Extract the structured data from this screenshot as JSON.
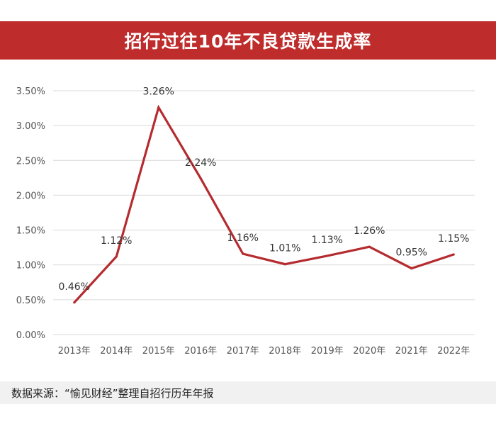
{
  "title": "招行过往10年不良贷款生成率",
  "source": "数据来源：“愉见财经”整理自招行历年年报",
  "colors": {
    "banner": "#bf2c2c",
    "line": "#b52b2f",
    "grid": "#d9d9d9"
  },
  "chart_data": {
    "type": "line",
    "title": "招行过往10年不良贷款生成率",
    "categories": [
      "2013年",
      "2014年",
      "2015年",
      "2016年",
      "2017年",
      "2018年",
      "2019年",
      "2020年",
      "2021年",
      "2022年"
    ],
    "series": [
      {
        "name": "不良贷款生成率",
        "values": [
          0.46,
          1.12,
          3.26,
          2.24,
          1.16,
          1.01,
          1.13,
          1.26,
          0.95,
          1.15
        ]
      }
    ],
    "data_labels": [
      "0.46%",
      "1.12%",
      "3.26%",
      "2.24%",
      "1.16%",
      "1.01%",
      "1.13%",
      "1.26%",
      "0.95%",
      "1.15%"
    ],
    "yticks": [
      "0.00%",
      "0.50%",
      "1.00%",
      "1.50%",
      "2.00%",
      "2.50%",
      "3.00%",
      "3.50%"
    ],
    "ylim": [
      0,
      3.5
    ],
    "grid": true,
    "xlabel": "",
    "ylabel": ""
  }
}
